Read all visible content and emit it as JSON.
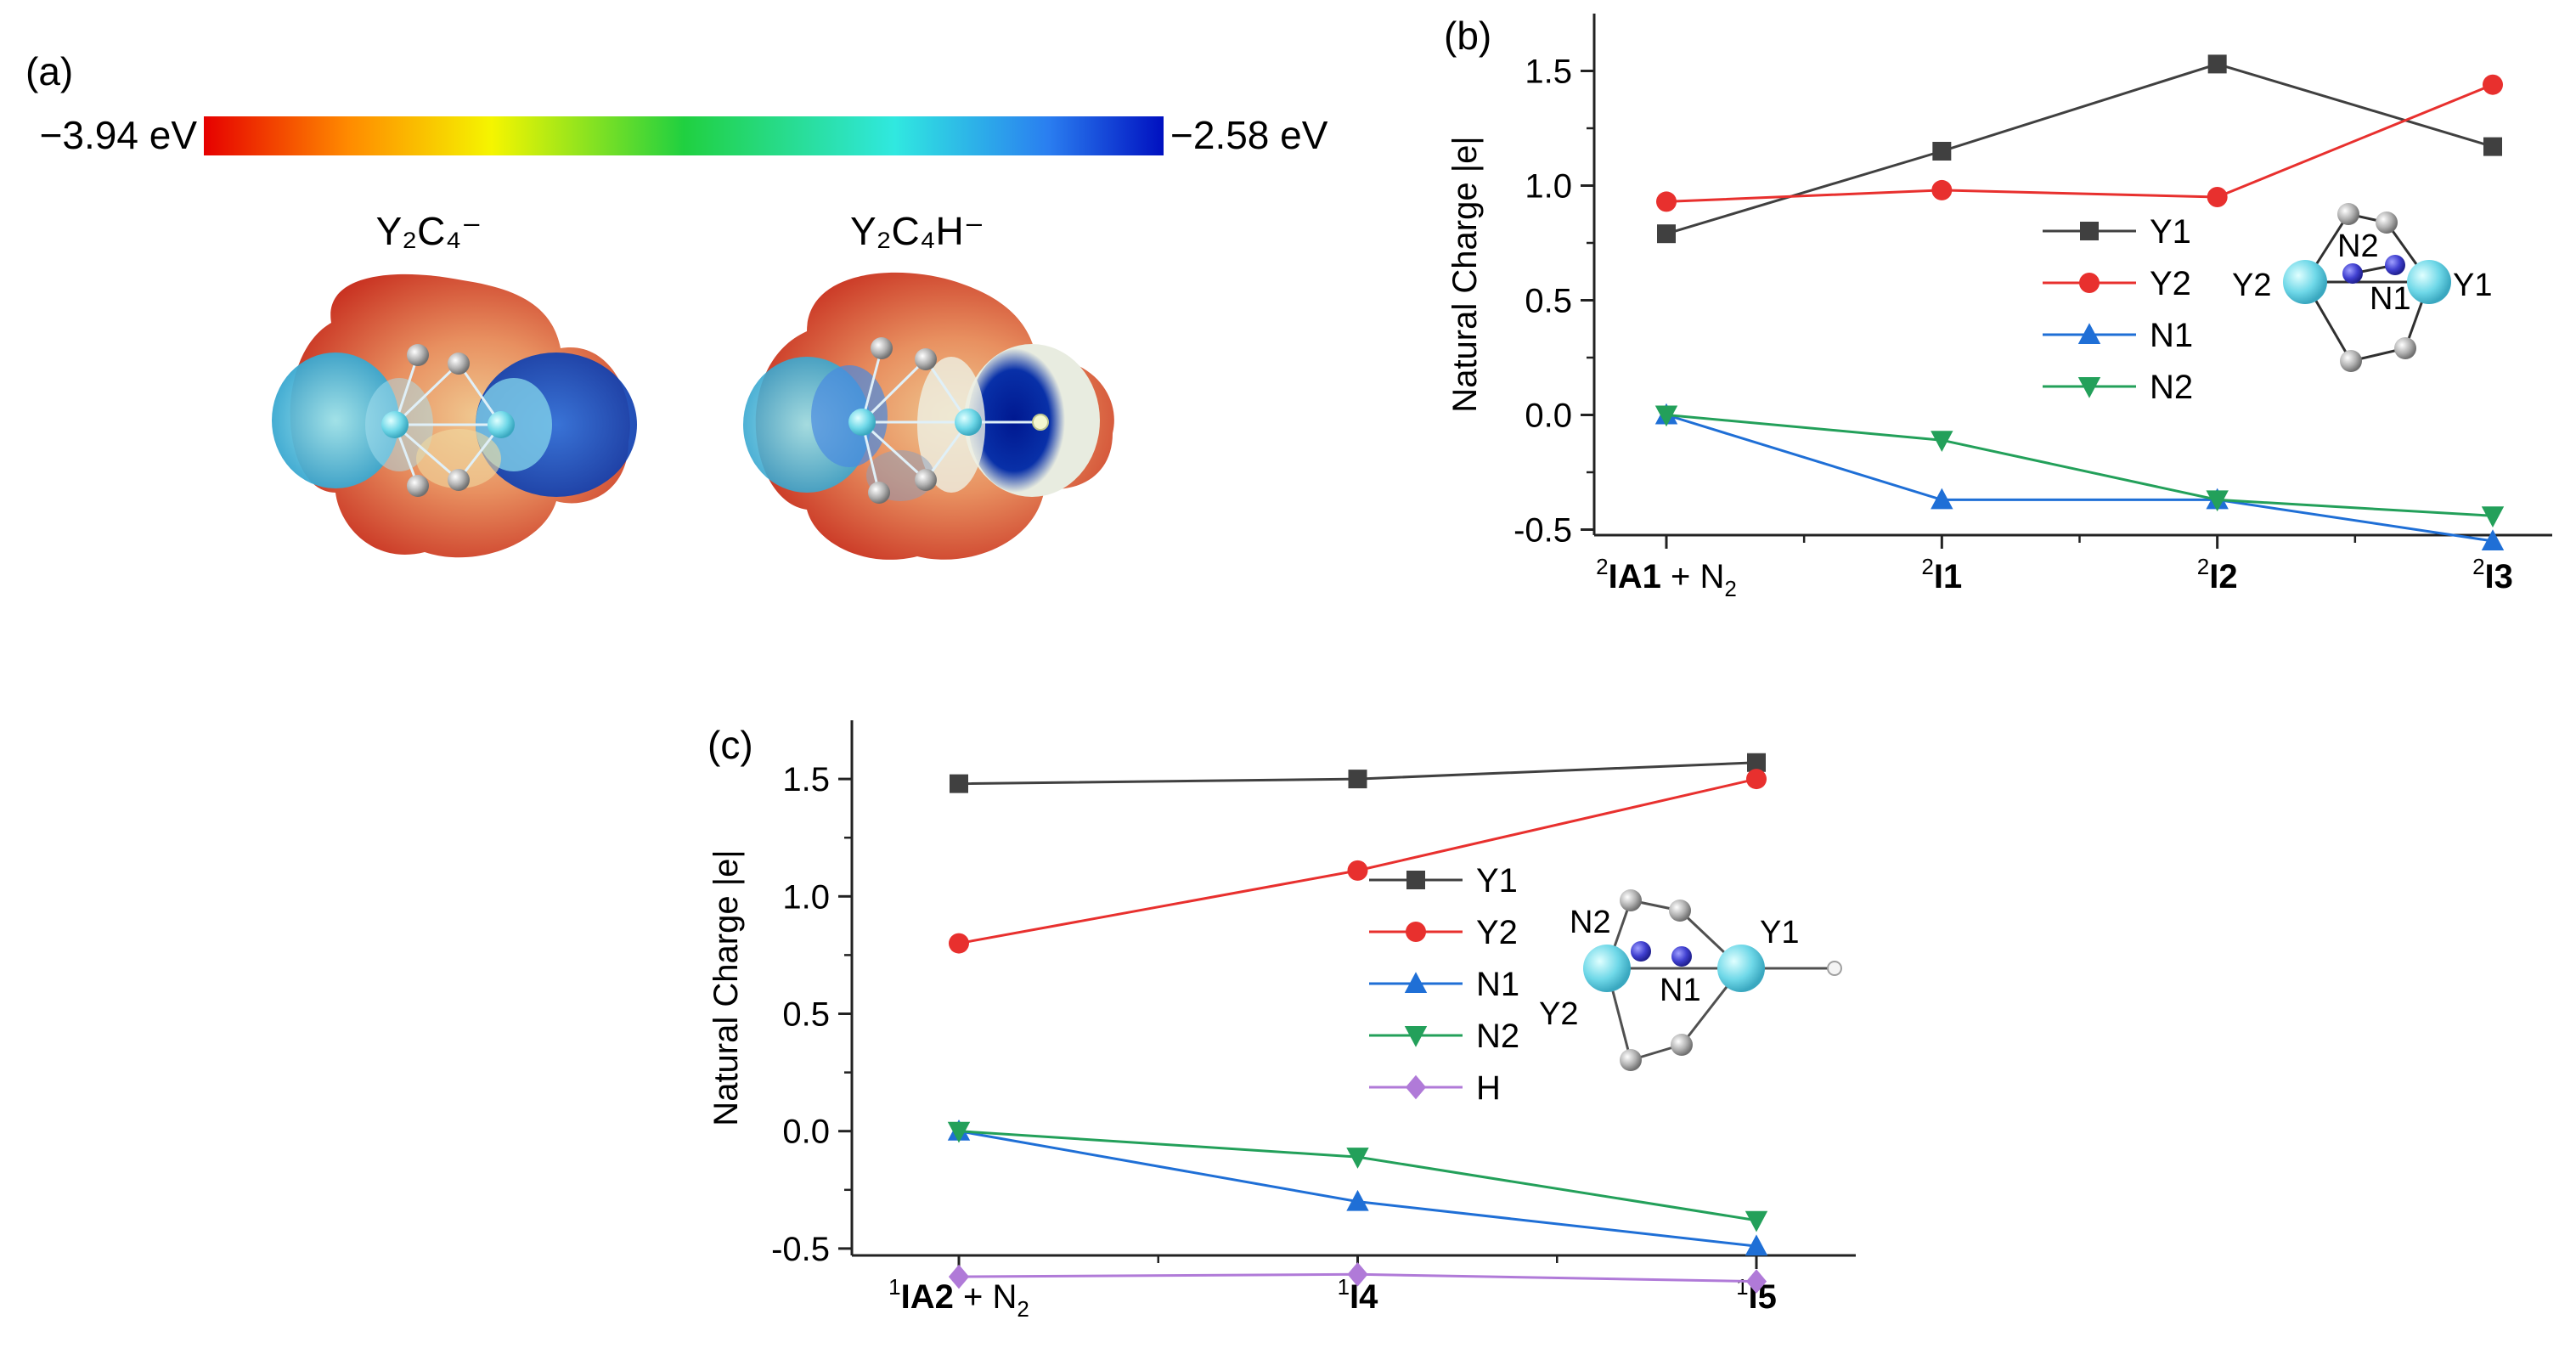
{
  "panel_a": {
    "label": "(a)",
    "scale_min": "−3.94 eV",
    "scale_max": "−2.58 eV",
    "molecule_left": "Y₂C₄⁻",
    "molecule_right": "Y₂C₄H⁻"
  },
  "panel_b_inset": {
    "y2": "Y2",
    "n2": "N2",
    "n1": "N1",
    "y1": "Y1"
  },
  "panel_c_inset": {
    "n2": "N2",
    "y1": "Y1",
    "n1": "N1",
    "y2": "Y2"
  },
  "colors": {
    "Y1": "#404040",
    "Y2": "#e8302e",
    "N1": "#1f6fd6",
    "N2": "#23a05a",
    "H": "#b07ad8"
  },
  "chart_data": [
    {
      "type": "line",
      "panel_label": "(b)",
      "ylabel": "Natural Charge |e|",
      "xlabel": "",
      "categories": [
        {
          "sup": "2",
          "main": "IA1",
          "rest": " + N",
          "sub": "2"
        },
        {
          "sup": "2",
          "main": "I1",
          "rest": "",
          "sub": ""
        },
        {
          "sup": "2",
          "main": "I2",
          "rest": "",
          "sub": ""
        },
        {
          "sup": "2",
          "main": "I3",
          "rest": "",
          "sub": ""
        }
      ],
      "ylim": [
        -0.75,
        1.75
      ],
      "yticks": [
        -0.5,
        0.0,
        0.5,
        1.0,
        1.5
      ],
      "ytick_labels": [
        "-0.5",
        "0.0",
        "0.5",
        "1.0",
        "1.5"
      ],
      "legend_position": "center-right",
      "series": [
        {
          "name": "Y1",
          "marker": "square",
          "values": [
            0.79,
            1.15,
            1.53,
            1.17
          ]
        },
        {
          "name": "Y2",
          "marker": "circle",
          "values": [
            0.93,
            0.98,
            0.95,
            1.44
          ]
        },
        {
          "name": "N1",
          "marker": "triangle-up",
          "values": [
            0.0,
            -0.37,
            -0.37,
            -0.55
          ]
        },
        {
          "name": "N2",
          "marker": "triangle-down",
          "values": [
            0.0,
            -0.11,
            -0.37,
            -0.44
          ]
        }
      ]
    },
    {
      "type": "line",
      "panel_label": "(c)",
      "ylabel": "Natural Charge |e|",
      "xlabel": "",
      "categories": [
        {
          "sup": "1",
          "main": "IA2",
          "rest": " + N",
          "sub": "2"
        },
        {
          "sup": "1",
          "main": "I4",
          "rest": "",
          "sub": ""
        },
        {
          "sup": "1",
          "main": "I5",
          "rest": "",
          "sub": ""
        }
      ],
      "ylim": [
        -0.75,
        1.75
      ],
      "yticks": [
        -0.5,
        0.0,
        0.5,
        1.0,
        1.5
      ],
      "ytick_labels": [
        "-0.5",
        "0.0",
        "0.5",
        "1.0",
        "1.5"
      ],
      "legend_position": "center-right",
      "series": [
        {
          "name": "Y1",
          "marker": "square",
          "values": [
            1.48,
            1.5,
            1.57
          ]
        },
        {
          "name": "Y2",
          "marker": "circle",
          "values": [
            0.8,
            1.11,
            1.5
          ]
        },
        {
          "name": "N1",
          "marker": "triangle-up",
          "values": [
            0.0,
            -0.3,
            -0.49
          ]
        },
        {
          "name": "N2",
          "marker": "triangle-down",
          "values": [
            0.0,
            -0.11,
            -0.38
          ]
        },
        {
          "name": "H",
          "marker": "diamond",
          "values": [
            -0.62,
            -0.61,
            -0.64
          ]
        }
      ]
    }
  ]
}
